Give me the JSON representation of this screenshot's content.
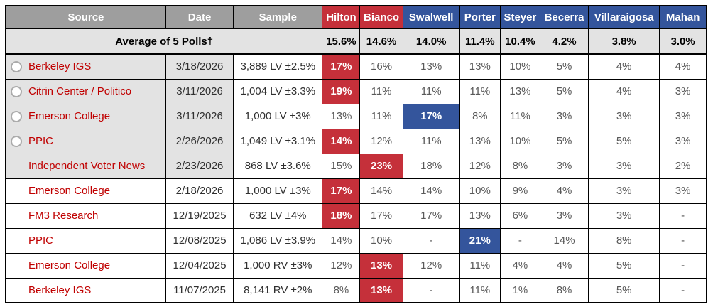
{
  "colors": {
    "republican_red": "#C5303A",
    "democrat_blue": "#34559C",
    "header_gray": "#9E9E9E",
    "shaded_row_gray": "#E3E3E3",
    "pollster_link_red": "#C00000",
    "value_text_gray": "#595959"
  },
  "chart_data": {
    "type": "table",
    "title": "",
    "columns": [
      {
        "label": "Source",
        "group": "meta"
      },
      {
        "label": "Date",
        "group": "meta"
      },
      {
        "label": "Sample",
        "group": "meta"
      },
      {
        "label": "Hilton",
        "group": "rep"
      },
      {
        "label": "Bianco",
        "group": "rep"
      },
      {
        "label": "Swalwell",
        "group": "dem"
      },
      {
        "label": "Porter",
        "group": "dem"
      },
      {
        "label": "Steyer",
        "group": "dem"
      },
      {
        "label": "Becerra",
        "group": "dem"
      },
      {
        "label": "Villaraigosa",
        "group": "dem"
      },
      {
        "label": "Mahan",
        "group": "dem"
      }
    ],
    "average_row": {
      "label": "Average of 5 Polls†",
      "values": [
        "15.6%",
        "14.6%",
        "14.0%",
        "11.4%",
        "10.4%",
        "4.2%",
        "3.8%",
        "3.0%"
      ]
    },
    "rows": [
      {
        "source": "Berkeley IGS",
        "date": "3/18/2026",
        "sample": "3,889 LV ±2.5%",
        "radio": true,
        "shaded": true,
        "values": [
          "17%",
          "16%",
          "13%",
          "13%",
          "10%",
          "5%",
          "4%",
          "4%"
        ],
        "highlights": [
          "rep",
          null,
          null,
          null,
          null,
          null,
          null,
          null
        ]
      },
      {
        "source": "Citrin Center / Politico",
        "date": "3/11/2026",
        "sample": "1,004 LV ±3.3%",
        "radio": true,
        "shaded": true,
        "values": [
          "19%",
          "11%",
          "11%",
          "11%",
          "13%",
          "5%",
          "4%",
          "3%"
        ],
        "highlights": [
          "rep",
          null,
          null,
          null,
          null,
          null,
          null,
          null
        ]
      },
      {
        "source": "Emerson College",
        "date": "3/11/2026",
        "sample": "1,000 LV ±3%",
        "radio": true,
        "shaded": true,
        "values": [
          "13%",
          "11%",
          "17%",
          "8%",
          "11%",
          "3%",
          "3%",
          "3%"
        ],
        "highlights": [
          null,
          null,
          "dem",
          null,
          null,
          null,
          null,
          null
        ]
      },
      {
        "source": "PPIC",
        "date": "2/26/2026",
        "sample": "1,049 LV ±3.1%",
        "radio": true,
        "shaded": true,
        "values": [
          "14%",
          "12%",
          "11%",
          "13%",
          "10%",
          "5%",
          "5%",
          "3%"
        ],
        "highlights": [
          "rep",
          null,
          null,
          null,
          null,
          null,
          null,
          null
        ]
      },
      {
        "source": "Independent Voter News",
        "date": "2/23/2026",
        "sample": "868 LV ±3.6%",
        "radio": false,
        "shaded": true,
        "values": [
          "15%",
          "23%",
          "18%",
          "12%",
          "8%",
          "3%",
          "3%",
          "2%"
        ],
        "highlights": [
          null,
          "rep",
          null,
          null,
          null,
          null,
          null,
          null
        ]
      },
      {
        "source": "Emerson College",
        "date": "2/18/2026",
        "sample": "1,000 LV ±3%",
        "radio": false,
        "shaded": false,
        "values": [
          "17%",
          "14%",
          "14%",
          "10%",
          "9%",
          "4%",
          "3%",
          "3%"
        ],
        "highlights": [
          "rep",
          null,
          null,
          null,
          null,
          null,
          null,
          null
        ]
      },
      {
        "source": "FM3 Research",
        "date": "12/19/2025",
        "sample": "632 LV ±4%",
        "radio": false,
        "shaded": false,
        "values": [
          "18%",
          "17%",
          "17%",
          "13%",
          "6%",
          "3%",
          "3%",
          "-"
        ],
        "highlights": [
          "rep",
          null,
          null,
          null,
          null,
          null,
          null,
          null
        ]
      },
      {
        "source": "PPIC",
        "date": "12/08/2025",
        "sample": "1,086 LV ±3.9%",
        "radio": false,
        "shaded": false,
        "values": [
          "14%",
          "10%",
          "-",
          "21%",
          "-",
          "14%",
          "8%",
          "-"
        ],
        "highlights": [
          null,
          null,
          null,
          "dem",
          null,
          null,
          null,
          null
        ]
      },
      {
        "source": "Emerson College",
        "date": "12/04/2025",
        "sample": "1,000 RV ±3%",
        "radio": false,
        "shaded": false,
        "values": [
          "12%",
          "13%",
          "12%",
          "11%",
          "4%",
          "4%",
          "5%",
          "-"
        ],
        "highlights": [
          null,
          "rep",
          null,
          null,
          null,
          null,
          null,
          null
        ]
      },
      {
        "source": "Berkeley IGS",
        "date": "11/07/2025",
        "sample": "8,141 RV ±2%",
        "radio": false,
        "shaded": false,
        "values": [
          "8%",
          "13%",
          "-",
          "11%",
          "1%",
          "8%",
          "5%",
          "-"
        ],
        "highlights": [
          null,
          "rep",
          null,
          null,
          null,
          null,
          null,
          null
        ]
      }
    ]
  }
}
